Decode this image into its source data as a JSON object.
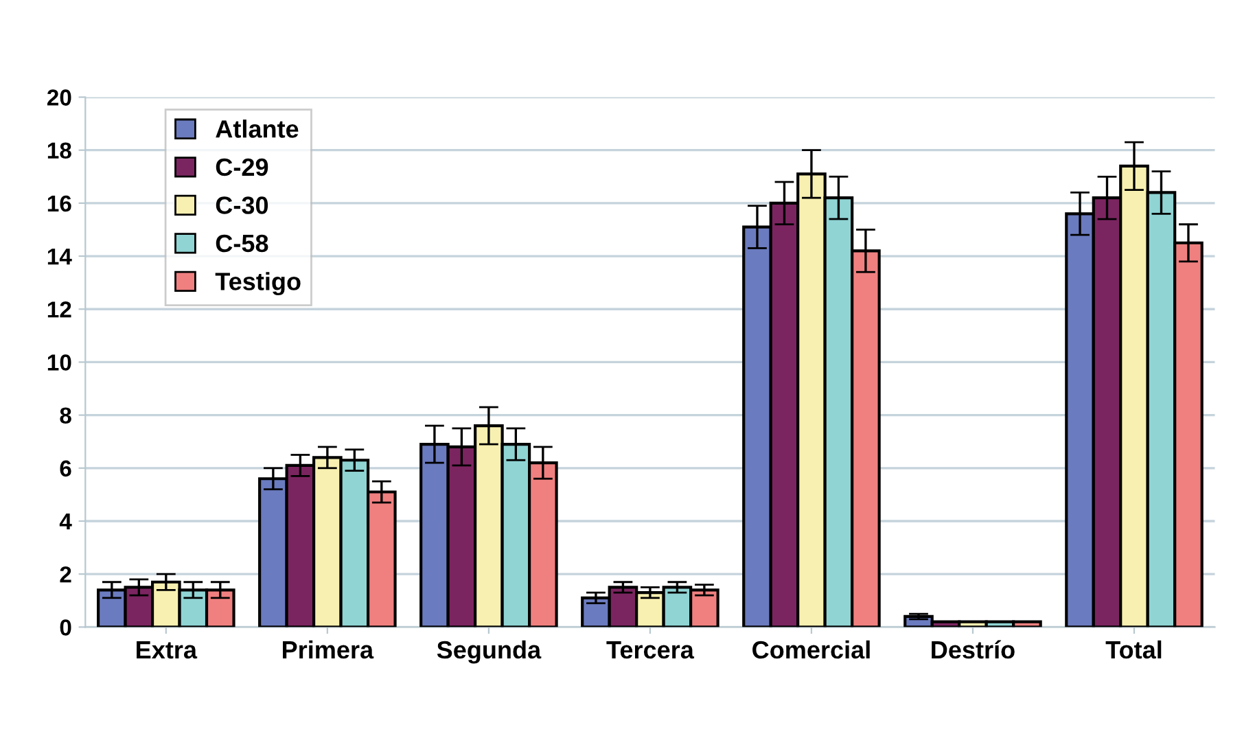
{
  "chart_data": {
    "type": "bar",
    "categories": [
      "Extra",
      "Primera",
      "Segunda",
      "Tercera",
      "Comercial",
      "Destrío",
      "Total"
    ],
    "series": [
      {
        "name": "Atlante",
        "color": "#6b7bbf",
        "values": [
          1.4,
          5.6,
          6.9,
          1.1,
          15.1,
          0.4,
          15.6
        ],
        "errors": [
          0.3,
          0.4,
          0.7,
          0.2,
          0.8,
          0.1,
          0.8
        ]
      },
      {
        "name": "C-29",
        "color": "#7b2560",
        "values": [
          1.5,
          6.1,
          6.8,
          1.5,
          16.0,
          0.2,
          16.2
        ],
        "errors": [
          0.3,
          0.4,
          0.7,
          0.2,
          0.8,
          null,
          0.8
        ]
      },
      {
        "name": "C-30",
        "color": "#f8f0b0",
        "values": [
          1.7,
          6.4,
          7.6,
          1.3,
          17.1,
          0.2,
          17.4
        ],
        "errors": [
          0.3,
          0.4,
          0.7,
          0.2,
          0.9,
          null,
          0.9
        ]
      },
      {
        "name": "C-58",
        "color": "#90d4d4",
        "values": [
          1.4,
          6.3,
          6.9,
          1.5,
          16.2,
          0.2,
          16.4
        ],
        "errors": [
          0.3,
          0.4,
          0.6,
          0.2,
          0.8,
          null,
          0.8
        ]
      },
      {
        "name": "Testigo",
        "color": "#f08080",
        "values": [
          1.4,
          5.1,
          6.2,
          1.4,
          14.2,
          0.2,
          14.5
        ],
        "errors": [
          0.3,
          0.4,
          0.6,
          0.2,
          0.8,
          null,
          0.7
        ]
      }
    ],
    "ylim": [
      0,
      20
    ],
    "yticks": [
      0,
      2,
      4,
      6,
      8,
      10,
      12,
      14,
      16,
      18,
      20
    ],
    "grid": "y",
    "legend": "top left"
  }
}
